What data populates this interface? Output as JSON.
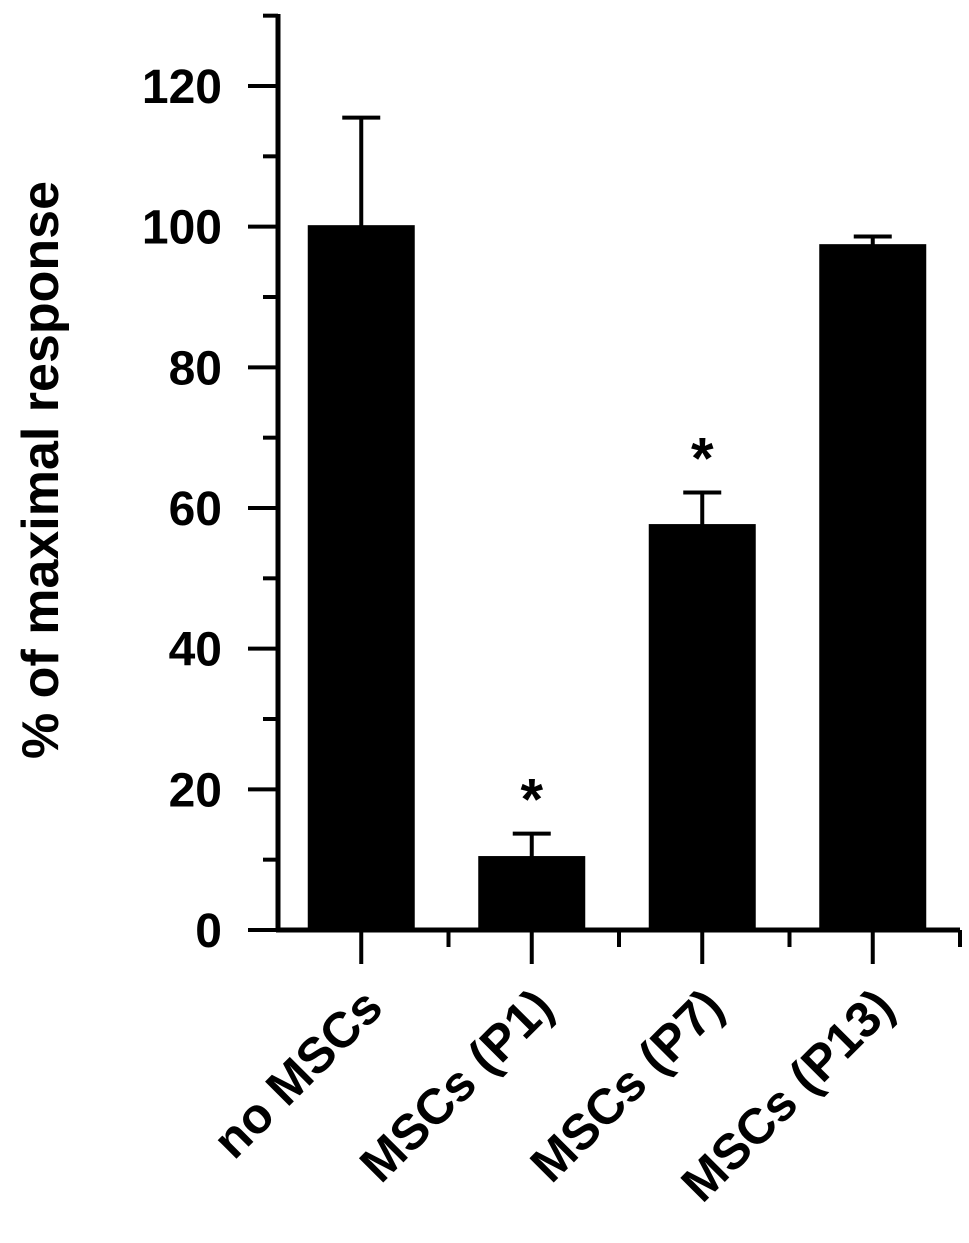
{
  "chart_data": {
    "type": "bar",
    "title": "",
    "xlabel": "",
    "ylabel": "% of maximal response",
    "categories": [
      "no MSCs",
      "MSCs (P1)",
      "MSCs (P7)",
      "MSCs (P13)"
    ],
    "values": [
      100,
      10.3,
      57.5,
      97.3
    ],
    "error_plus": [
      15.5,
      3.4,
      4.7,
      1.3
    ],
    "annotations": [
      "",
      "*",
      "*",
      ""
    ],
    "ylim": [
      0,
      130
    ],
    "yticks_major": [
      0,
      20,
      40,
      60,
      80,
      100,
      120
    ],
    "yticks_minor": [
      10,
      30,
      50,
      70,
      90,
      110,
      130
    ],
    "bar_color": "#000000",
    "grid": false,
    "legend": "none"
  }
}
